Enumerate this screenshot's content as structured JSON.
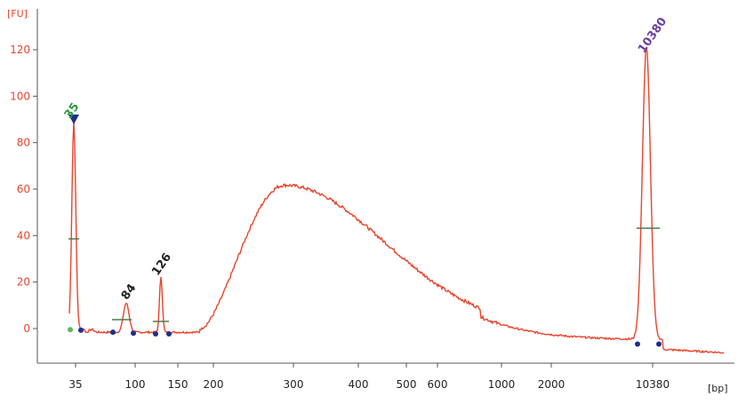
{
  "chart_data": {
    "type": "line",
    "y_unit": "[FU]",
    "x_unit": "[bp]",
    "ylim": [
      -15,
      133
    ],
    "y_ticks": [
      0,
      20,
      40,
      60,
      80,
      100,
      120
    ],
    "x_ticks": [
      "35",
      "100",
      "150",
      "200",
      "300",
      "400",
      "500",
      "600",
      "1000",
      "2000",
      "10380"
    ],
    "grid": false,
    "line_color": "#e8452c",
    "series": [
      {
        "x_bp": [
          35,
          100,
          150,
          200,
          300,
          400,
          500,
          600,
          1000,
          2000,
          10380
        ],
        "values": [
          88,
          -1.5,
          -2,
          -1,
          61,
          30,
          8,
          1,
          -4,
          -5,
          119
        ]
      }
    ],
    "peaks": [
      {
        "label": "35",
        "value": 88,
        "color": "#2e9a3a",
        "marker": "triangle"
      },
      {
        "label": "84",
        "value": 11,
        "color": "#222222"
      },
      {
        "label": "126",
        "value": 22,
        "color": "#222222"
      },
      {
        "label": "10380",
        "value": 119,
        "color": "#6b3fa0"
      }
    ]
  }
}
